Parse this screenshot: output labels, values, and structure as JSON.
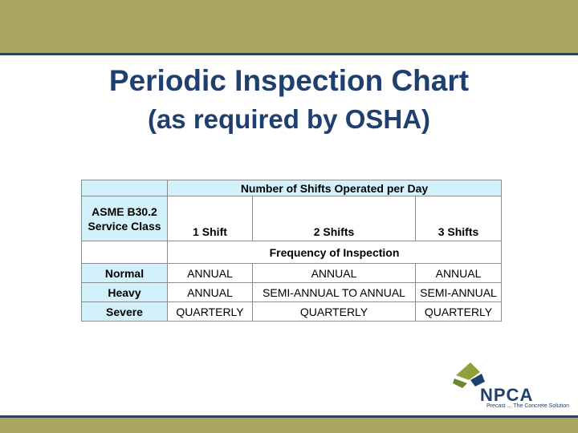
{
  "title": "Periodic Inspection Chart",
  "subtitle": "(as required by OSHA)",
  "table": {
    "group_header": "Number of Shifts Operated per Day",
    "class_header_line1": "ASME B30.2",
    "class_header_line2": "Service Class",
    "shift_headers": [
      "1 Shift",
      "2 Shifts",
      "3 Shifts"
    ],
    "frequency_header": "Frequency of Inspection",
    "rows": [
      {
        "class": "Normal",
        "values": [
          "ANNUAL",
          "ANNUAL",
          "ANNUAL"
        ]
      },
      {
        "class": "Heavy",
        "values": [
          "ANNUAL",
          "SEMI-ANNUAL TO ANNUAL",
          "SEMI-ANNUAL"
        ]
      },
      {
        "class": "Severe",
        "values": [
          "QUARTERLY",
          "QUARTERLY",
          "QUARTERLY"
        ]
      }
    ]
  },
  "logo": {
    "name": "NPCA",
    "tagline": "Precast ... The Concrete Solution"
  },
  "colors": {
    "band": "#a9a65f",
    "title": "#1f3f6e",
    "cell_blue": "#d3f1fb"
  }
}
